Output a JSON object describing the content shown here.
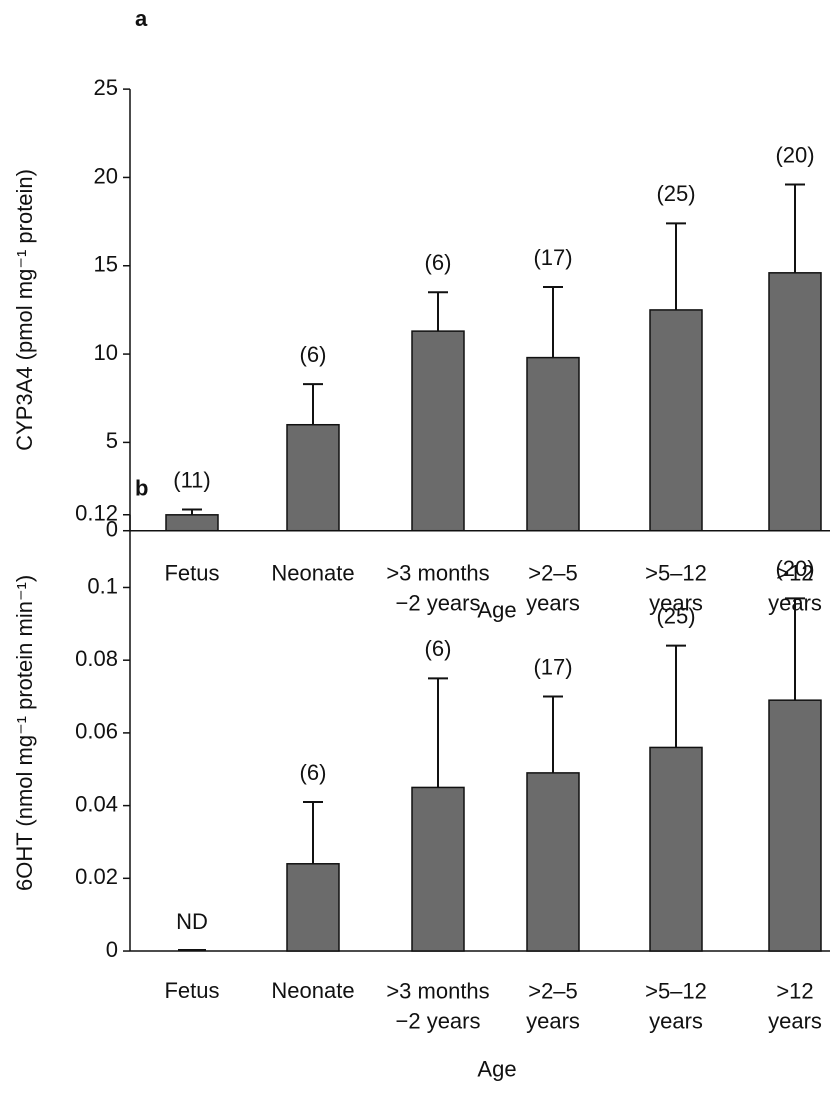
{
  "chart_data": [
    {
      "type": "bar",
      "panel_label": "a",
      "categories": [
        "Fetus",
        "Neonate",
        ">3 months\n−2 years",
        ">2–5\nyears",
        ">5–12\nyears",
        ">12\nyears"
      ],
      "values": [
        0.9,
        6.0,
        11.3,
        9.8,
        12.5,
        14.6
      ],
      "errors": [
        0.3,
        2.3,
        2.2,
        4.0,
        4.9,
        5.0
      ],
      "annotations": [
        "(11)",
        "(6)",
        "(6)",
        "(17)",
        "(25)",
        "(20)"
      ],
      "xlabel": "Age",
      "ylabel": "CYP3A4 (pmol mg⁻¹ protein)",
      "ylim": [
        0,
        25
      ],
      "yticks": [
        0,
        5,
        10,
        15,
        20,
        25
      ],
      "color": "#6b6b6b"
    },
    {
      "type": "bar",
      "panel_label": "b",
      "categories": [
        "Fetus",
        "Neonate",
        ">3 months\n−2 years",
        ">2–5\nyears",
        ">5–12\nyears",
        ">12\nyears"
      ],
      "values": [
        null,
        0.024,
        0.045,
        0.049,
        0.056,
        0.069
      ],
      "errors": [
        null,
        0.017,
        0.03,
        0.021,
        0.028,
        0.028
      ],
      "annotations": [
        "ND",
        "(6)",
        "(6)",
        "(17)",
        "(25)",
        "(20)"
      ],
      "xlabel": "Age",
      "ylabel": "6OHT (nmol mg⁻¹ protein min⁻¹)",
      "ylim": [
        0,
        0.12
      ],
      "yticks": [
        0,
        0.02,
        0.04,
        0.06,
        0.08,
        0.1,
        0.12
      ],
      "color": "#6b6b6b"
    }
  ]
}
